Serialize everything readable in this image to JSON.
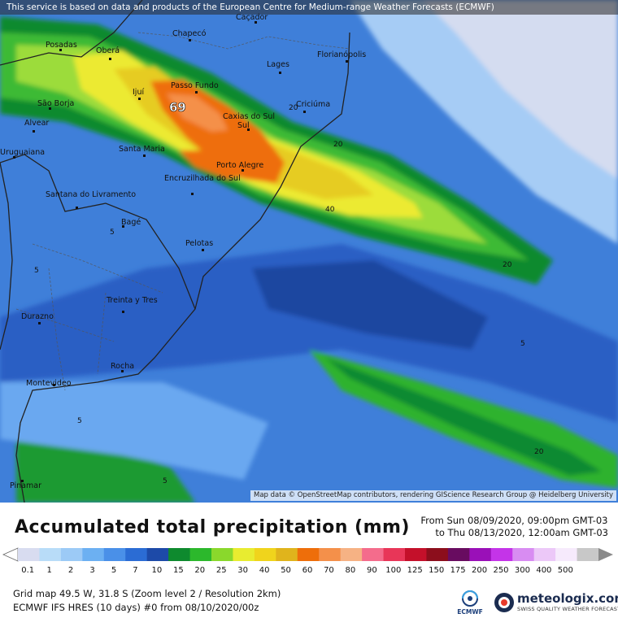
{
  "notice": "This service is based on data and products of the European Centre for Medium-range Weather Forecasts (ECMWF)",
  "attribution": "Map data © OpenStreetMap contributors, rendering GIScience Research Group @ Heidelberg University",
  "title": "Accumulated total precipitation (mm)",
  "period": {
    "from": "From Sun 08/09/2020, 09:00pm GMT-03",
    "to": "to Thu 08/13/2020, 12:00am GMT-03"
  },
  "footer": {
    "line1": "Grid map 49.5 W, 31.8 S (Zoom level 2 / Resolution 2km)",
    "line2": "ECMWF IFS HRES (10 days) #0 from 08/10/2020/00z"
  },
  "logos": {
    "ecmwf": "ECMWF",
    "meteologix": "meteologix.com",
    "meteologix_tagline": "SWISS QUALITY WEATHER FORECASTING"
  },
  "max_value_label": "69",
  "contour_labels": [
    "20",
    "20",
    "40",
    "20",
    "5",
    "5",
    "5",
    "5",
    "20",
    "5"
  ],
  "cities": [
    "Caçador",
    "Chapecó",
    "Posadas",
    "Oberá",
    "Florianópolis",
    "Lages",
    "Passo Fundo",
    "Ijuí",
    "São Borja",
    "Criciúma",
    "Caxias do Sul",
    "Alvear",
    "Santa Maria",
    "Uruguaiana",
    "Porto Alegre",
    "Encruzilhada do Sul",
    "Santana do Livramento",
    "Bagé",
    "Pelotas",
    "Treinta y Tres",
    "Durazno",
    "Rocha",
    "Montevideo",
    "Pinamar"
  ],
  "scale": {
    "labels": [
      "0.1",
      "1",
      "2",
      "3",
      "5",
      "7",
      "10",
      "15",
      "20",
      "25",
      "30",
      "40",
      "50",
      "60",
      "70",
      "80",
      "90",
      "100",
      "125",
      "150",
      "175",
      "200",
      "250",
      "300",
      "400",
      "500"
    ],
    "colors": [
      "#d8dcf0",
      "#b8dcf8",
      "#9ccaf6",
      "#6cb0f2",
      "#4a90e8",
      "#2b6cd4",
      "#1d4aa8",
      "#0e8a2e",
      "#2cb82c",
      "#8ad82c",
      "#e8ec30",
      "#f0d41c",
      "#e0b41c",
      "#ee6e0a",
      "#f4904a",
      "#f6b284",
      "#f46c8c",
      "#e83658",
      "#c4102a",
      "#8c0e1c",
      "#680c60",
      "#9a10b8",
      "#c434e8",
      "#d88cf2",
      "#ecc8f8",
      "#f6eafc",
      "#c8c8c8"
    ]
  }
}
